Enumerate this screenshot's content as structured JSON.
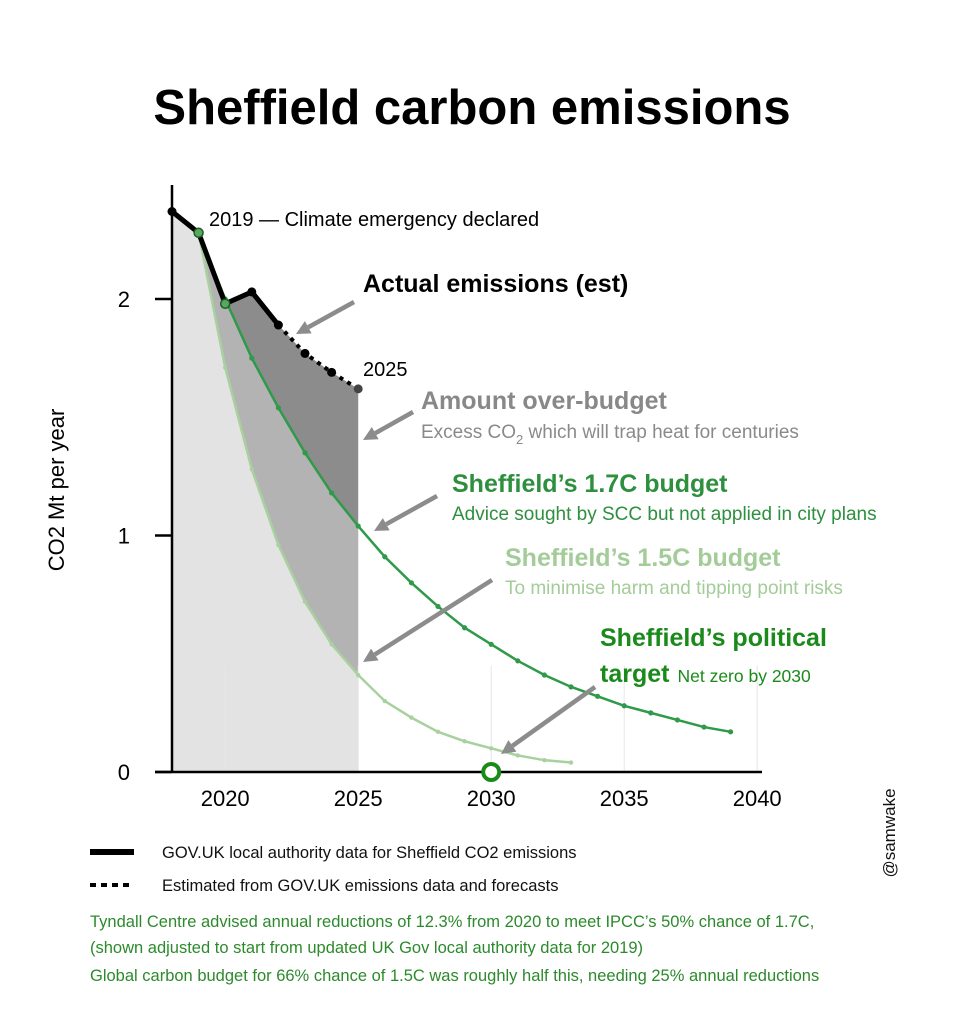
{
  "chart_data": {
    "type": "line",
    "title": "Sheffield carbon emissions",
    "xlabel": "",
    "ylabel": "CO2 Mt per year",
    "xlim": [
      2018,
      2040
    ],
    "ylim": [
      0,
      2.45
    ],
    "x_ticks": [
      2020,
      2025,
      2030,
      2035,
      2040
    ],
    "y_ticks": [
      0,
      1,
      2
    ],
    "grid": false,
    "series": [
      {
        "name": "GOV.UK local authority data for Sheffield CO2 emissions",
        "style": "solid",
        "color": "#000000",
        "x": [
          2018,
          2019,
          2020,
          2021,
          2022
        ],
        "y": [
          2.37,
          2.28,
          1.98,
          2.03,
          1.89
        ]
      },
      {
        "name": "Estimated from GOV.UK emissions data and forecasts",
        "style": "dotted",
        "color": "#000000",
        "x": [
          2022,
          2023,
          2024,
          2025
        ],
        "y": [
          1.89,
          1.77,
          1.69,
          1.62
        ]
      },
      {
        "name": "Sheffield's 1.7C budget",
        "color": "#2e9a4a",
        "annual_reduction_pct": 12.3,
        "start_year": 2019,
        "start_value": 2.28,
        "x": [
          2019,
          2020,
          2021,
          2022,
          2023,
          2024,
          2025,
          2026,
          2027,
          2028,
          2029,
          2030,
          2031,
          2032,
          2033,
          2034,
          2035,
          2036,
          2037,
          2038,
          2039
        ],
        "y": [
          2.28,
          2.0,
          1.75,
          1.54,
          1.35,
          1.18,
          1.04,
          0.91,
          0.8,
          0.7,
          0.61,
          0.54,
          0.47,
          0.41,
          0.36,
          0.32,
          0.28,
          0.25,
          0.22,
          0.19,
          0.17
        ]
      },
      {
        "name": "Sheffield's 1.5C budget",
        "color": "#a9d19f",
        "annual_reduction_pct": 25,
        "start_year": 2019,
        "start_value": 2.28,
        "x": [
          2019,
          2020,
          2021,
          2022,
          2023,
          2024,
          2025,
          2026,
          2027,
          2028,
          2029,
          2030,
          2031,
          2032,
          2033
        ],
        "y": [
          2.28,
          1.71,
          1.28,
          0.96,
          0.72,
          0.54,
          0.41,
          0.3,
          0.23,
          0.17,
          0.13,
          0.1,
          0.07,
          0.05,
          0.04
        ]
      }
    ],
    "markers": [
      {
        "name": "Sheffield's political target",
        "x": 2030,
        "y": 0,
        "color": "#1a8a1a"
      }
    ],
    "shaded_regions": [
      {
        "name": "Amount over-budget",
        "between": [
          "actual",
          "1.7C budget"
        ],
        "x_range": [
          2019,
          2025
        ],
        "color": "#8c8c8c"
      },
      {
        "name": "between 1.7C and 1.5C budgets",
        "x_range": [
          2019,
          2025
        ],
        "color": "#b3b3b3"
      },
      {
        "name": "under 1.5C budget",
        "x_range": [
          2018,
          2025
        ],
        "color": "#e3e3e3"
      }
    ],
    "annotations": {
      "emergency": "2019 — Climate emergency declared",
      "year_2025": "2025",
      "actual": "Actual emissions (est)",
      "over_budget_title": "Amount over-budget",
      "over_budget_sub_pre": "Excess CO",
      "over_budget_sub_subscript": "2",
      "over_budget_sub_post": " which will trap heat for centuries",
      "budget17_title": "Sheffield’s 1.7C budget",
      "budget17_sub": "Advice sought by SCC but not applied in city plans",
      "budget15_title": "Sheffield’s 1.5C budget",
      "budget15_sub": "To minimise harm and tipping point risks",
      "political_title_line1": "Sheffield’s political",
      "political_title_line2": "target",
      "political_sub": "Net zero by 2030"
    },
    "legend": [
      {
        "label": "GOV.UK local authority data for Sheffield CO2 emissions",
        "style": "solid"
      },
      {
        "label": "Estimated from GOV.UK emissions data and forecasts",
        "style": "dotted"
      }
    ],
    "notes": [
      "Tyndall Centre advised annual reductions of 12.3% from 2020 to meet IPCC’s 50% chance of 1.7C,",
      "(shown adjusted to start from updated UK Gov local authority data for 2019)",
      "Global carbon budget for 66% chance of 1.5C was roughly half this, needing 25% annual reductions"
    ],
    "credit": "@samwake",
    "colors": {
      "dark_green": "#1a8a1a",
      "mid_green": "#2e9a4a",
      "light_green": "#a9d19f",
      "gray_text": "#8a8a8a",
      "arrow": "#8c8c8c"
    }
  }
}
